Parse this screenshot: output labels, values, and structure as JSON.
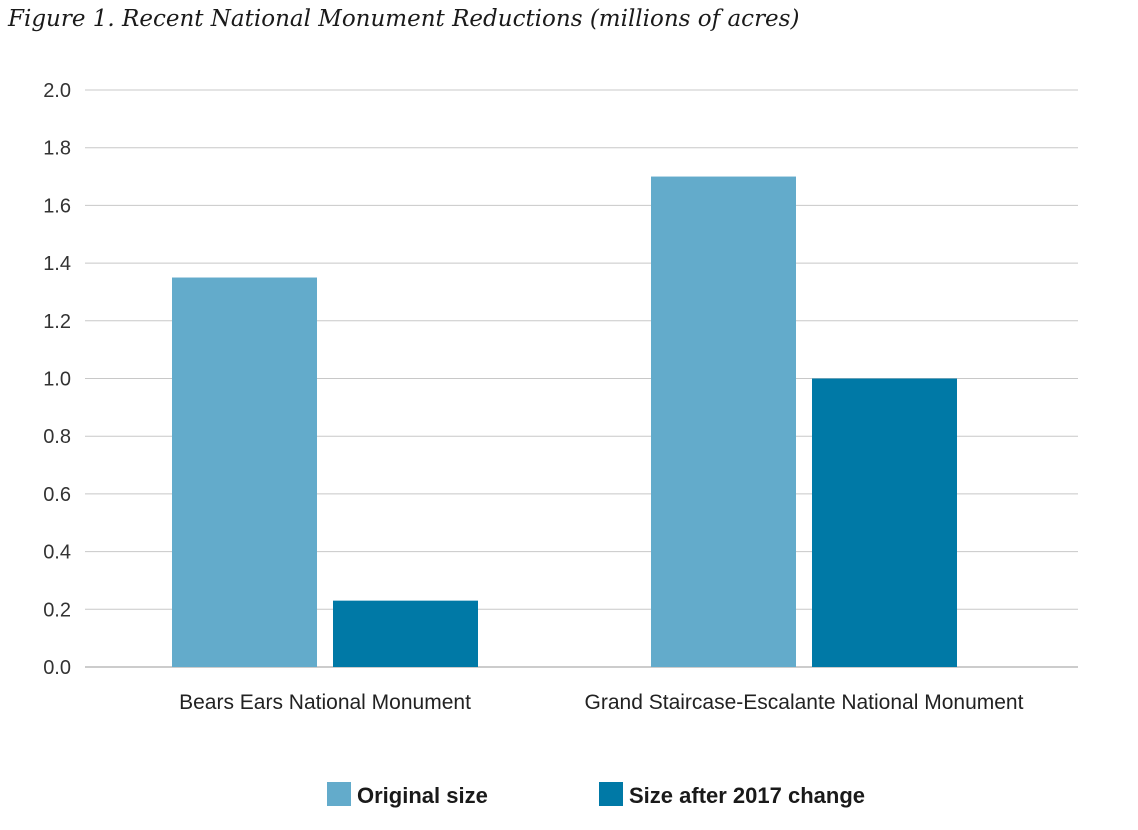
{
  "chart_data": {
    "type": "bar",
    "title": "Figure 1. Recent National Monument Reductions (millions of acres)",
    "xlabel": "",
    "ylabel": "",
    "categories": [
      "Bears Ears National Monument",
      "Grand Staircase-Escalante National Monument"
    ],
    "series": [
      {
        "name": "Original size",
        "values": [
          1.35,
          1.7
        ],
        "color": "#63abcb"
      },
      {
        "name": "Size after 2017 change",
        "values": [
          0.23,
          1.0
        ],
        "color": "#0079a6"
      }
    ],
    "ylim": [
      0,
      2.0
    ],
    "yticks": [
      "0.0",
      "0.2",
      "0.4",
      "0.6",
      "0.8",
      "1.0",
      "1.2",
      "1.4",
      "1.6",
      "1.8",
      "2.0"
    ],
    "grid": true,
    "legend_position": "bottom-center"
  }
}
